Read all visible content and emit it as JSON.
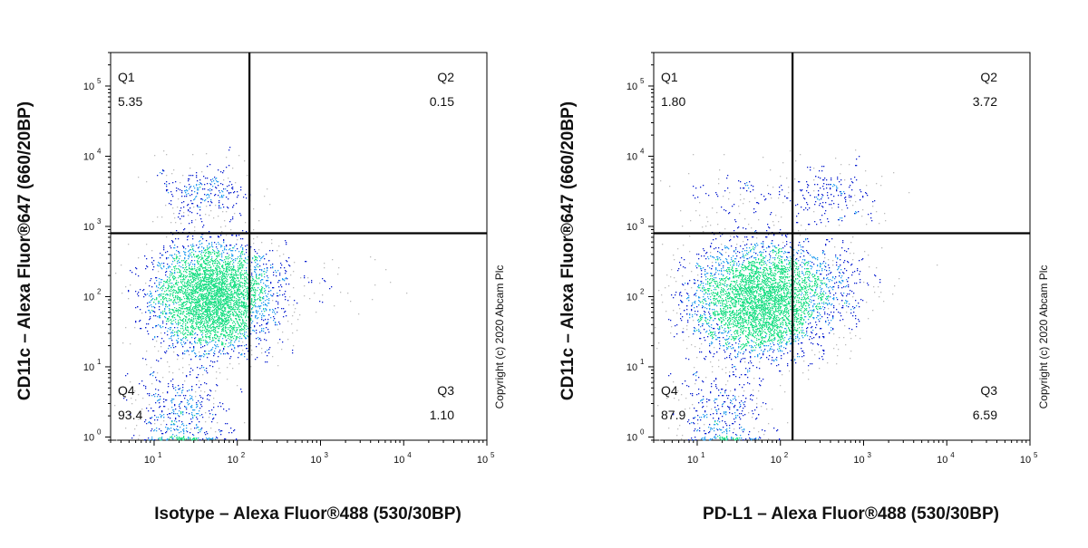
{
  "copyright": "Copyright (c) 2020 Abcam Plc",
  "colors": {
    "density_low": "#0a1fd0",
    "density_mid": "#2aa0f0",
    "density_high": "#26e08a",
    "sparse": "#bcbcbc",
    "gate_line": "#000000"
  },
  "chart_data": [
    {
      "type": "scatter",
      "subtype": "flow-cytometry-density-dot-plot",
      "xlabel": "Isotype – Alexa Fluor®488 (530/30BP)",
      "ylabel": "CD11c – Alexa Fluor®647 (660/20BP)",
      "x_scale": "log",
      "y_scale": "log",
      "xlim": [
        3,
        100000
      ],
      "ylim": [
        0.9,
        300000
      ],
      "x_ticks": [
        {
          "base": "10",
          "exp": "1",
          "value": 10
        },
        {
          "base": "10",
          "exp": "2",
          "value": 100
        },
        {
          "base": "10",
          "exp": "3",
          "value": 1000
        },
        {
          "base": "10",
          "exp": "4",
          "value": 10000
        },
        {
          "base": "10",
          "exp": "5",
          "value": 100000
        }
      ],
      "y_ticks": [
        {
          "base": "10",
          "exp": "0",
          "value": 1
        },
        {
          "base": "10",
          "exp": "1",
          "value": 10
        },
        {
          "base": "10",
          "exp": "2",
          "value": 100
        },
        {
          "base": "10",
          "exp": "3",
          "value": 1000
        },
        {
          "base": "10",
          "exp": "4",
          "value": 10000
        },
        {
          "base": "10",
          "exp": "5",
          "value": 100000
        }
      ],
      "gate": {
        "x": 140,
        "y": 800
      },
      "quadrants": [
        {
          "name": "Q1",
          "value": "5.35",
          "position": "top-left"
        },
        {
          "name": "Q2",
          "value": "0.15",
          "position": "top-right"
        },
        {
          "name": "Q3",
          "value": "1.10",
          "position": "bottom-right"
        },
        {
          "name": "Q4",
          "value": "93.4",
          "position": "bottom-left"
        }
      ],
      "populations": [
        {
          "x_center": 50,
          "y_center": 100,
          "x_spread_decades": 0.35,
          "y_spread_decades": 0.38,
          "weight": 0.83
        },
        {
          "x_center": 40,
          "y_center": 3000,
          "x_spread_decades": 0.3,
          "y_spread_decades": 0.22,
          "weight": 0.055
        },
        {
          "x_center": 1000,
          "y_center": 150,
          "x_spread_decades": 0.45,
          "y_spread_decades": 0.3,
          "weight": 0.011
        },
        {
          "x_center": 20,
          "y_center": 2,
          "x_spread_decades": 0.3,
          "y_spread_decades": 0.35,
          "weight": 0.1
        }
      ]
    },
    {
      "type": "scatter",
      "subtype": "flow-cytometry-density-dot-plot",
      "xlabel": "PD-L1 – Alexa Fluor®488 (530/30BP)",
      "ylabel": "CD11c – Alexa Fluor®647 (660/20BP)",
      "x_scale": "log",
      "y_scale": "log",
      "xlim": [
        3,
        100000
      ],
      "ylim": [
        0.9,
        300000
      ],
      "x_ticks": [
        {
          "base": "10",
          "exp": "1",
          "value": 10
        },
        {
          "base": "10",
          "exp": "2",
          "value": 100
        },
        {
          "base": "10",
          "exp": "3",
          "value": 1000
        },
        {
          "base": "10",
          "exp": "4",
          "value": 10000
        },
        {
          "base": "10",
          "exp": "5",
          "value": 100000
        }
      ],
      "y_ticks": [
        {
          "base": "10",
          "exp": "0",
          "value": 1
        },
        {
          "base": "10",
          "exp": "1",
          "value": 10
        },
        {
          "base": "10",
          "exp": "2",
          "value": 100
        },
        {
          "base": "10",
          "exp": "3",
          "value": 1000
        },
        {
          "base": "10",
          "exp": "4",
          "value": 10000
        },
        {
          "base": "10",
          "exp": "5",
          "value": 100000
        }
      ],
      "gate": {
        "x": 140,
        "y": 800
      },
      "quadrants": [
        {
          "name": "Q1",
          "value": "1.80",
          "position": "top-left"
        },
        {
          "name": "Q2",
          "value": "3.72",
          "position": "top-right"
        },
        {
          "name": "Q3",
          "value": "6.59",
          "position": "bottom-right"
        },
        {
          "name": "Q4",
          "value": "87.9",
          "position": "bottom-left"
        }
      ],
      "populations": [
        {
          "x_center": 55,
          "y_center": 90,
          "x_spread_decades": 0.4,
          "y_spread_decades": 0.4,
          "weight": 0.8
        },
        {
          "x_center": 400,
          "y_center": 3000,
          "x_spread_decades": 0.3,
          "y_spread_decades": 0.22,
          "weight": 0.04
        },
        {
          "x_center": 30,
          "y_center": 2500,
          "x_spread_decades": 0.35,
          "y_spread_decades": 0.25,
          "weight": 0.02
        },
        {
          "x_center": 350,
          "y_center": 150,
          "x_spread_decades": 0.35,
          "y_spread_decades": 0.35,
          "weight": 0.06
        },
        {
          "x_center": 20,
          "y_center": 2,
          "x_spread_decades": 0.3,
          "y_spread_decades": 0.35,
          "weight": 0.08
        }
      ]
    }
  ]
}
